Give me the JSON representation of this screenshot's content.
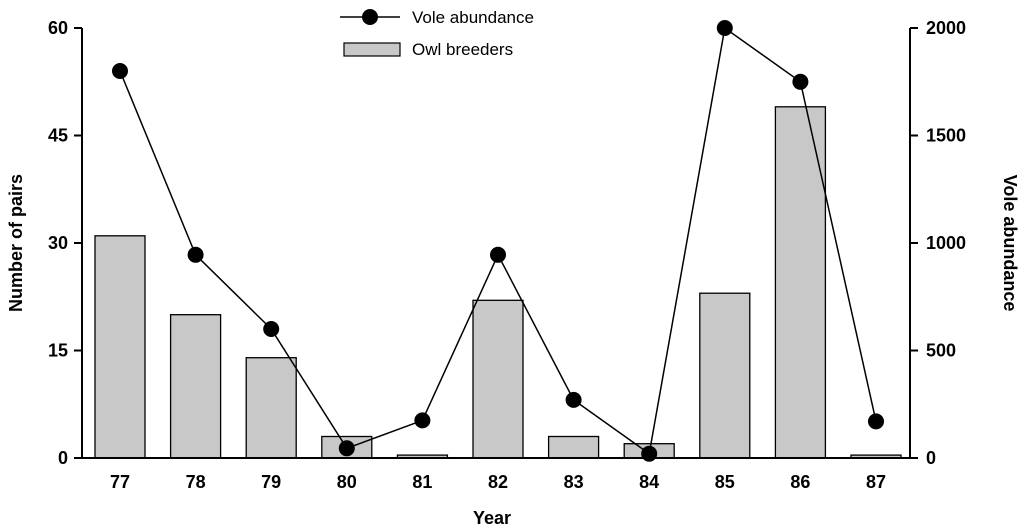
{
  "chart_data": {
    "type": "bar",
    "x": {
      "label": "Year",
      "categories": [
        "77",
        "78",
        "79",
        "80",
        "81",
        "82",
        "83",
        "84",
        "85",
        "86",
        "87"
      ]
    },
    "y_left": {
      "label": "Number of pairs",
      "ylim": [
        0,
        60
      ],
      "ticks": [
        0,
        15,
        30,
        45,
        60
      ],
      "tick_labels": [
        "0",
        "15",
        "30",
        "45",
        "60"
      ]
    },
    "y_right": {
      "label": "Vole abundance",
      "ylim": [
        0,
        2000
      ],
      "ticks": [
        0,
        500,
        1000,
        1500,
        2000
      ],
      "tick_labels": [
        "0",
        "500",
        "1000",
        "1500",
        "2000"
      ]
    },
    "series": [
      {
        "name": "Owl breeders",
        "type": "bar",
        "axis": "left",
        "color": "#c8c8c8",
        "values": [
          31,
          20,
          14,
          3,
          0.4,
          22,
          3,
          2,
          23,
          49,
          0.4
        ]
      },
      {
        "name": "Vole abundance",
        "type": "line",
        "axis": "right",
        "color": "#000000",
        "marker": "circle",
        "values": [
          1800,
          945,
          600,
          45,
          175,
          945,
          270,
          20,
          2000,
          1750,
          170
        ]
      }
    ],
    "legend": {
      "position": "top-center",
      "entries": [
        "Vole abundance",
        "Owl breeders"
      ]
    },
    "grid": false
  }
}
